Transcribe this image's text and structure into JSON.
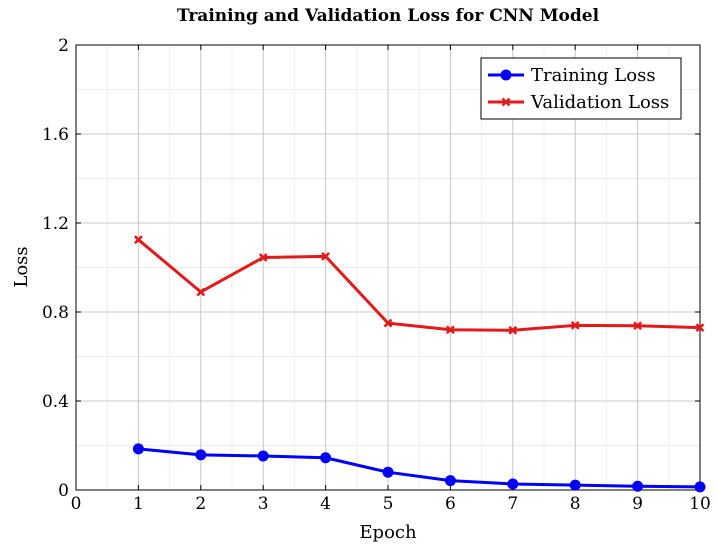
{
  "chart_data": {
    "type": "line",
    "title": "Training and Validation Loss for CNN Model",
    "xlabel": "Epoch",
    "ylabel": "Loss",
    "xlim": [
      0,
      10
    ],
    "ylim": [
      0,
      2
    ],
    "x_ticks": [
      0,
      1,
      2,
      3,
      4,
      5,
      6,
      7,
      8,
      9,
      10
    ],
    "y_ticks": [
      0,
      0.4,
      0.8,
      1.2,
      1.6,
      2
    ],
    "grid": true,
    "minor_grid": true,
    "legend_position": "top-right",
    "x": [
      1,
      2,
      3,
      4,
      5,
      6,
      7,
      8,
      9,
      10
    ],
    "series": [
      {
        "name": "Training Loss",
        "color": "#0000ff",
        "marker": "circle",
        "values": [
          0.185,
          0.158,
          0.153,
          0.145,
          0.08,
          0.042,
          0.027,
          0.022,
          0.017,
          0.014
        ]
      },
      {
        "name": "Validation Loss",
        "color": "#e41a1a",
        "marker": "x",
        "values": [
          1.125,
          0.89,
          1.045,
          1.05,
          0.75,
          0.72,
          0.718,
          0.74,
          0.738,
          0.73
        ]
      }
    ]
  }
}
